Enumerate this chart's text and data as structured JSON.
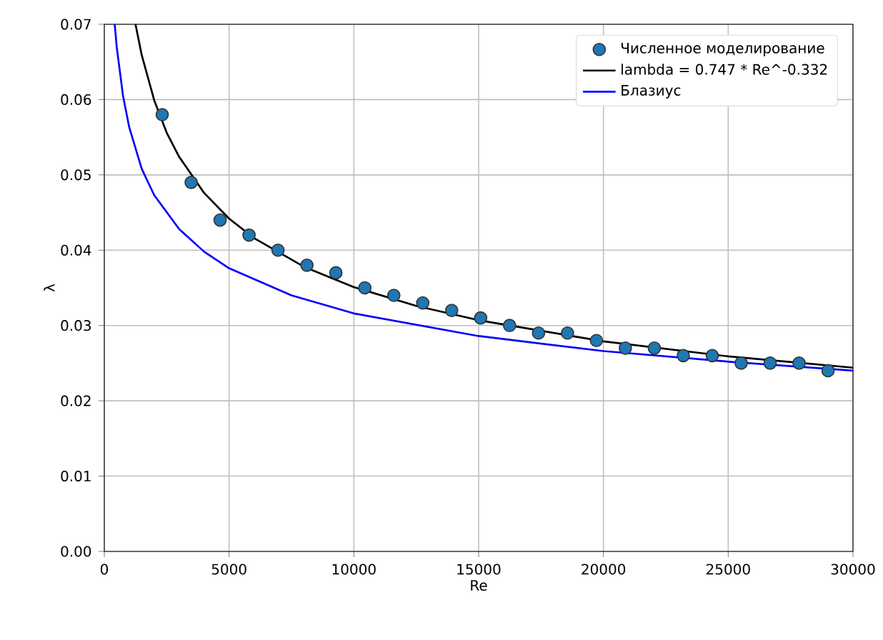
{
  "chart_data": {
    "type": "line",
    "xlabel": "Re",
    "ylabel": "λ",
    "xlim": [
      0,
      30000
    ],
    "ylim": [
      0,
      0.07
    ],
    "xticks": [
      0,
      5000,
      10000,
      15000,
      20000,
      25000,
      30000
    ],
    "yticks": [
      {
        "value": 0,
        "label": "0.00"
      },
      {
        "value": 0.01,
        "label": "0.01"
      },
      {
        "value": 0.02,
        "label": "0.02"
      },
      {
        "value": 0.03,
        "label": "0.03"
      },
      {
        "value": 0.04,
        "label": "0.04"
      },
      {
        "value": 0.05,
        "label": "0.05"
      },
      {
        "value": 0.06,
        "label": "0.06"
      },
      {
        "value": 0.07,
        "label": "0.07"
      }
    ],
    "grid": true,
    "legend": "top right",
    "series": [
      {
        "name": "Численное моделирование",
        "type": "scatter",
        "marker": "circle",
        "color": "#1f77b4",
        "x": [
          2320,
          3480,
          4640,
          5800,
          6960,
          8120,
          9280,
          10440,
          11600,
          12760,
          13920,
          15080,
          16240,
          17400,
          18560,
          19720,
          20880,
          22040,
          23200,
          24360,
          25520,
          26680,
          27840,
          29000
        ],
        "values": [
          0.058,
          0.049,
          0.044,
          0.042,
          0.04,
          0.038,
          0.037,
          0.035,
          0.034,
          0.033,
          0.032,
          0.031,
          0.03,
          0.029,
          0.029,
          0.028,
          0.027,
          0.027,
          0.026,
          0.026,
          0.025,
          0.025,
          0.025,
          0.024
        ]
      },
      {
        "name": "lambda = 0.747 * Re^-0.332",
        "marker": "none",
        "color": "#000000",
        "x": [
          1250,
          1500,
          2000,
          2500,
          3000,
          4000,
          5000,
          6000,
          8000,
          10000,
          12500,
          15000,
          20000,
          25000,
          30000
        ],
        "values": [
          0.07,
          0.0659,
          0.0599,
          0.0556,
          0.0524,
          0.0476,
          0.0442,
          0.0416,
          0.0378,
          0.0351,
          0.0326,
          0.0307,
          0.0279,
          0.0259,
          0.0244
        ]
      },
      {
        "name": "Блазиус",
        "marker": "none",
        "color": "#0000ff",
        "x": [
          417,
          500,
          750,
          1000,
          1500,
          2000,
          3000,
          4000,
          5000,
          7500,
          10000,
          15000,
          20000,
          25000,
          30000
        ],
        "values": [
          0.07,
          0.0669,
          0.0605,
          0.0563,
          0.0508,
          0.0473,
          0.0428,
          0.0398,
          0.0376,
          0.034,
          0.0316,
          0.0286,
          0.0266,
          0.0252,
          0.024
        ]
      }
    ]
  }
}
